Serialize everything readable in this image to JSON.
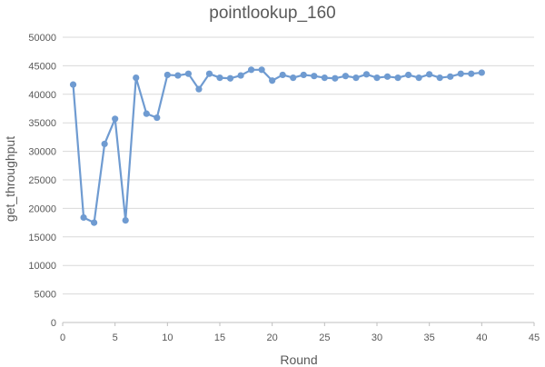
{
  "chart_data": {
    "type": "line",
    "title": "pointlookup_160",
    "xlabel": "Round",
    "ylabel": "get_throughput",
    "xlim": [
      0,
      45
    ],
    "ylim": [
      0,
      50000
    ],
    "xticks": [
      0,
      5,
      10,
      15,
      20,
      25,
      30,
      35,
      40,
      45
    ],
    "yticks": [
      0,
      5000,
      10000,
      15000,
      20000,
      25000,
      30000,
      35000,
      40000,
      45000,
      50000
    ],
    "grid": "horizontal",
    "legend": "none",
    "series": [
      {
        "color": "#6f9bd1",
        "x": [
          1,
          2,
          3,
          4,
          5,
          6,
          7,
          8,
          9,
          10,
          11,
          12,
          13,
          14,
          15,
          16,
          17,
          18,
          19,
          20,
          21,
          22,
          23,
          24,
          25,
          26,
          27,
          28,
          29,
          30,
          31,
          32,
          33,
          34,
          35,
          36,
          37,
          38,
          39,
          40
        ],
        "y": [
          41700,
          18400,
          17500,
          31300,
          35700,
          17900,
          42900,
          36600,
          35900,
          43400,
          43300,
          43600,
          40900,
          43600,
          42900,
          42800,
          43300,
          44300,
          44300,
          42400,
          43400,
          42900,
          43400,
          43200,
          42900,
          42800,
          43200,
          42900,
          43500,
          42900,
          43100,
          42900,
          43400,
          42900,
          43500,
          42900,
          43100,
          43600,
          43600,
          43800
        ]
      }
    ]
  }
}
